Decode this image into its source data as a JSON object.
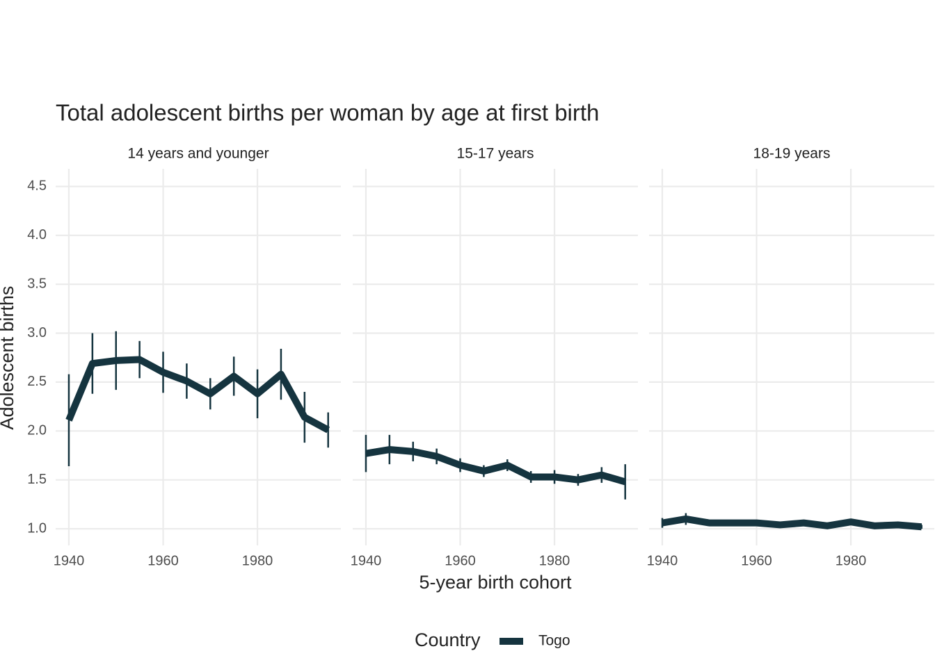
{
  "title": "Total adolescent births per woman by age at first birth",
  "x_label": "5-year birth cohort",
  "y_label": "Adolescent births",
  "legend_title": "Country",
  "chart_data": [
    {
      "type": "line",
      "subtitle": "14 years and younger",
      "x": [
        1940,
        1945,
        1950,
        1955,
        1960,
        1965,
        1970,
        1975,
        1980,
        1985,
        1990,
        1995
      ],
      "series": [
        {
          "name": "Togo",
          "color": "#15343f",
          "values": [
            2.11,
            2.69,
            2.72,
            2.73,
            2.6,
            2.51,
            2.38,
            2.56,
            2.38,
            2.58,
            2.14,
            2.01
          ],
          "errors": [
            0.47,
            0.31,
            0.3,
            0.19,
            0.21,
            0.18,
            0.16,
            0.2,
            0.25,
            0.26,
            0.26,
            0.18
          ]
        }
      ],
      "xlim": [
        1937.2,
        1997.7
      ],
      "xticks": [
        1940,
        1960,
        1980
      ],
      "ylim": [
        0.83,
        4.68
      ],
      "yticks": [
        {
          "value": 1,
          "label": "1.0"
        },
        1.5,
        {
          "value": 2,
          "label": "2.0"
        },
        2.5,
        {
          "value": 3,
          "label": "3.0"
        },
        3.5,
        {
          "value": 4,
          "label": "4.0"
        },
        4.5
      ],
      "grid": true
    },
    {
      "type": "line",
      "subtitle": "15-17 years",
      "x": [
        1940,
        1945,
        1950,
        1955,
        1960,
        1965,
        1970,
        1975,
        1980,
        1985,
        1990,
        1995
      ],
      "series": [
        {
          "name": "Togo",
          "color": "#15343f",
          "values": [
            1.77,
            1.81,
            1.79,
            1.74,
            1.65,
            1.59,
            1.65,
            1.53,
            1.53,
            1.5,
            1.55,
            1.48
          ],
          "errors": [
            0.19,
            0.15,
            0.1,
            0.08,
            0.07,
            0.06,
            0.06,
            0.06,
            0.07,
            0.06,
            0.08,
            0.18
          ]
        }
      ],
      "xlim": [
        1937.2,
        1997.7
      ],
      "xticks": [
        1940,
        1960,
        1980
      ],
      "ylim": [
        0.83,
        4.68
      ],
      "yticks": [
        {
          "value": 1,
          "label": "1.0"
        },
        1.5,
        {
          "value": 2,
          "label": "2.0"
        },
        2.5,
        {
          "value": 3,
          "label": "3.0"
        },
        3.5,
        {
          "value": 4,
          "label": "4.0"
        },
        4.5
      ],
      "grid": true
    },
    {
      "type": "line",
      "subtitle": "18-19 years",
      "x": [
        1940,
        1945,
        1950,
        1955,
        1960,
        1965,
        1970,
        1975,
        1980,
        1985,
        1990,
        1995
      ],
      "series": [
        {
          "name": "Togo",
          "color": "#15343f",
          "values": [
            1.06,
            1.1,
            1.06,
            1.06,
            1.06,
            1.04,
            1.06,
            1.03,
            1.07,
            1.03,
            1.04,
            1.02
          ],
          "errors": [
            0.05,
            0.06,
            0.02,
            0.02,
            0.02,
            0.02,
            0.02,
            0.02,
            0.02,
            0.02,
            0.02,
            0.02
          ]
        }
      ],
      "xlim": [
        1937.2,
        1997.7
      ],
      "xticks": [
        1940,
        1960,
        1980
      ],
      "ylim": [
        0.83,
        4.68
      ],
      "yticks": [
        {
          "value": 1,
          "label": "1.0"
        },
        1.5,
        {
          "value": 2,
          "label": "2.0"
        },
        2.5,
        {
          "value": 3,
          "label": "3.0"
        },
        3.5,
        {
          "value": 4,
          "label": "4.0"
        },
        4.5
      ],
      "grid": true
    }
  ]
}
